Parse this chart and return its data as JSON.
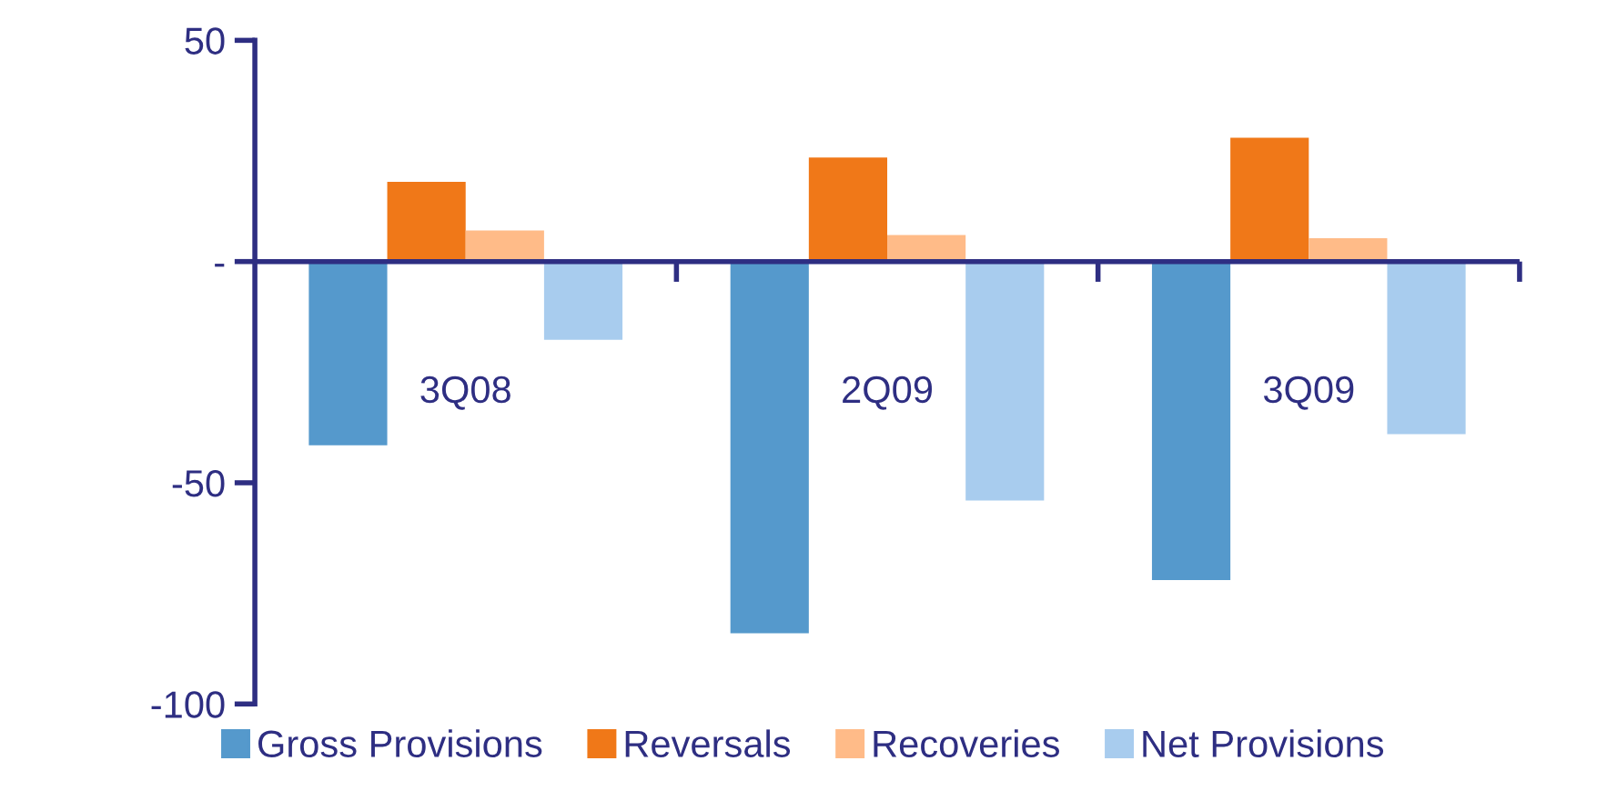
{
  "chart_data": {
    "type": "bar",
    "categories": [
      "3Q08",
      "2Q09",
      "3Q09"
    ],
    "series": [
      {
        "name": "Gross Provisions",
        "color": "#5599cc",
        "values": [
          -41.5,
          -84,
          -72
        ]
      },
      {
        "name": "Reversals",
        "color": "#f07818",
        "values": [
          18,
          23.5,
          28
        ]
      },
      {
        "name": "Recoveries",
        "color": "#ffbb88",
        "values": [
          7,
          6,
          5.3
        ]
      },
      {
        "name": "Net Provisions",
        "color": "#a8ccee",
        "values": [
          -17.7,
          -54,
          -39
        ]
      }
    ],
    "ylim": [
      -100,
      50
    ],
    "yticks": [
      50,
      {
        "value": 0,
        "label": "-"
      },
      -50,
      -100
    ],
    "ref_lines": [
      {
        "axis": "y",
        "value": 0,
        "color": "#2e2e82"
      }
    ],
    "grid": false,
    "legend": "bottom"
  }
}
